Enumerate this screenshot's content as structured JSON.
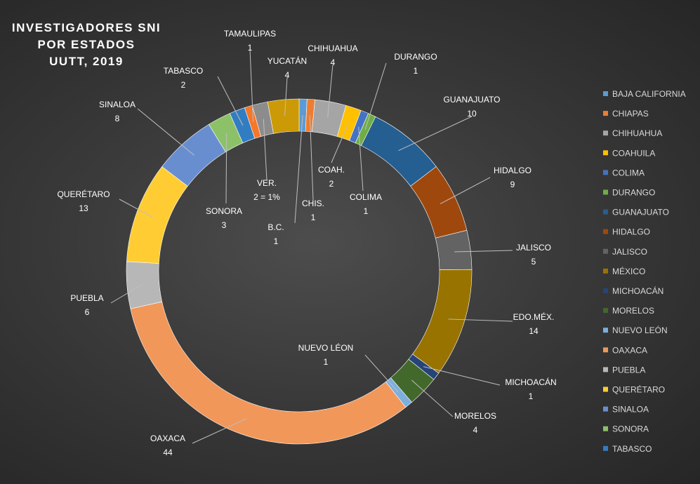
{
  "chart_data": {
    "type": "pie",
    "variant": "doughnut",
    "title": [
      "INVESTIGADORES SNI",
      "POR ESTADOS",
      "UUTT, 2019"
    ],
    "legend_position": "right",
    "slices": [
      {
        "name": "BAJA CALIFORNIA",
        "value": 1,
        "color": "#5b9bd5",
        "label": [
          "B.C.",
          "1"
        ]
      },
      {
        "name": "CHIAPAS",
        "value": 1,
        "color": "#ed7d31",
        "label": [
          "CHIS.",
          "1"
        ]
      },
      {
        "name": "CHIHUAHUA",
        "value": 4,
        "color": "#a5a5a5",
        "label": [
          "CHIHUAHUA",
          "4"
        ]
      },
      {
        "name": "COAHUILA",
        "value": 2,
        "color": "#ffc000",
        "label": [
          "COAH.",
          "2"
        ]
      },
      {
        "name": "COLIMA",
        "value": 1,
        "color": "#4472c4",
        "label": [
          "COLIMA",
          "1"
        ]
      },
      {
        "name": "DURANGO",
        "value": 1,
        "color": "#70ad47",
        "label": [
          "DURANGO",
          "1"
        ]
      },
      {
        "name": "GUANAJUATO",
        "value": 10,
        "color": "#255e91",
        "label": [
          "GUANAJUATO",
          "10"
        ]
      },
      {
        "name": "HIDALGO",
        "value": 9,
        "color": "#9e480e",
        "label": [
          "HIDALGO",
          "9"
        ]
      },
      {
        "name": "JALISCO",
        "value": 5,
        "color": "#636363",
        "label": [
          "JALISCO",
          "5"
        ]
      },
      {
        "name": "MÉXICO",
        "value": 14,
        "color": "#997300",
        "label": [
          "EDO.MÉX.",
          "14"
        ]
      },
      {
        "name": "MICHOACÁN",
        "value": 1,
        "color": "#264478",
        "label": [
          "MICHOACÁN",
          "1"
        ]
      },
      {
        "name": "MORELOS",
        "value": 4,
        "color": "#43682b",
        "label": [
          "MORELOS",
          "4"
        ]
      },
      {
        "name": "NUEVO LEÓN",
        "value": 1,
        "color": "#7cafdd",
        "label": [
          "NUEVO LÉON",
          "1"
        ]
      },
      {
        "name": "OAXACA",
        "value": 44,
        "color": "#f1975a",
        "label": [
          "OAXACA",
          "44"
        ]
      },
      {
        "name": "PUEBLA",
        "value": 6,
        "color": "#b7b7b7",
        "label": [
          "PUEBLA",
          "6"
        ]
      },
      {
        "name": "QUERÉTARO",
        "value": 13,
        "color": "#ffcd33",
        "label": [
          "QUERÉTARO",
          "13"
        ]
      },
      {
        "name": "SINALOA",
        "value": 8,
        "color": "#698ed0",
        "label": [
          "SINALOA",
          "8"
        ]
      },
      {
        "name": "SONORA",
        "value": 3,
        "color": "#8cc168",
        "label": [
          "SONORA",
          "3"
        ]
      },
      {
        "name": "TABASCO",
        "value": 2,
        "color": "#327dc2",
        "label": [
          "TABASCO",
          "2"
        ]
      },
      {
        "name": "TAMAULIPAS",
        "value": 1,
        "color": "#f4772a",
        "label": [
          "TAMAULIPAS",
          "1"
        ]
      },
      {
        "name": "VERACRUZ",
        "value": 2,
        "color": "#8c8c8c",
        "label": [
          "VER.",
          "2 = 1%"
        ]
      },
      {
        "name": "YUCATÁN",
        "value": 4,
        "color": "#cc9a06",
        "label": [
          "YUCATÁN",
          "4"
        ]
      }
    ],
    "legend_entries": [
      "BAJA CALIFORNIA",
      "CHIAPAS",
      "CHIHUAHUA",
      "COAHUILA",
      "COLIMA",
      "DURANGO",
      "GUANAJUATO",
      "HIDALGO",
      "JALISCO",
      "MÉXICO",
      "MICHOACÁN",
      "MORELOS",
      "NUEVO LEÓN",
      "OAXACA",
      "PUEBLA",
      "QUERÉTARO",
      "SINALOA",
      "SONORA",
      "TABASCO"
    ]
  }
}
